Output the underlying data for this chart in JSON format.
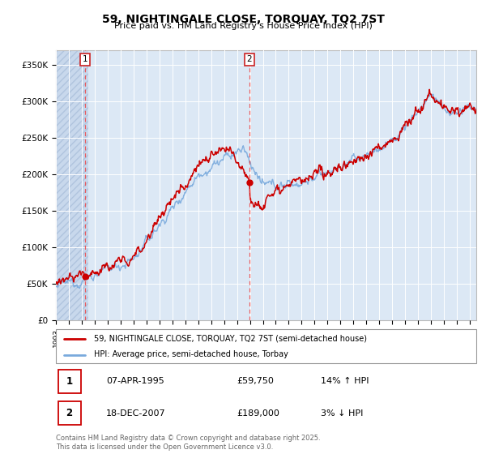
{
  "title": "59, NIGHTINGALE CLOSE, TORQUAY, TQ2 7ST",
  "subtitle": "Price paid vs. HM Land Registry's House Price Index (HPI)",
  "ylim": [
    0,
    370000
  ],
  "yticks": [
    0,
    50000,
    100000,
    150000,
    200000,
    250000,
    300000,
    350000
  ],
  "ytick_labels": [
    "£0",
    "£50K",
    "£100K",
    "£150K",
    "£200K",
    "£250K",
    "£300K",
    "£350K"
  ],
  "bg_color": "#dce8f5",
  "grid_color": "#ffffff",
  "red_line_color": "#cc0000",
  "blue_line_color": "#7aaadd",
  "sale1_year": 1995.27,
  "sale1_price": 59750,
  "sale2_year": 2007.96,
  "sale2_price": 189000,
  "legend_label1": "59, NIGHTINGALE CLOSE, TORQUAY, TQ2 7ST (semi-detached house)",
  "legend_label2": "HPI: Average price, semi-detached house, Torbay",
  "table_row1": [
    "1",
    "07-APR-1995",
    "£59,750",
    "14% ↑ HPI"
  ],
  "table_row2": [
    "2",
    "18-DEC-2007",
    "£189,000",
    "3% ↓ HPI"
  ],
  "footer": "Contains HM Land Registry data © Crown copyright and database right 2025.\nThis data is licensed under the Open Government Licence v3.0.",
  "xmin": 1993,
  "xmax": 2025.5
}
